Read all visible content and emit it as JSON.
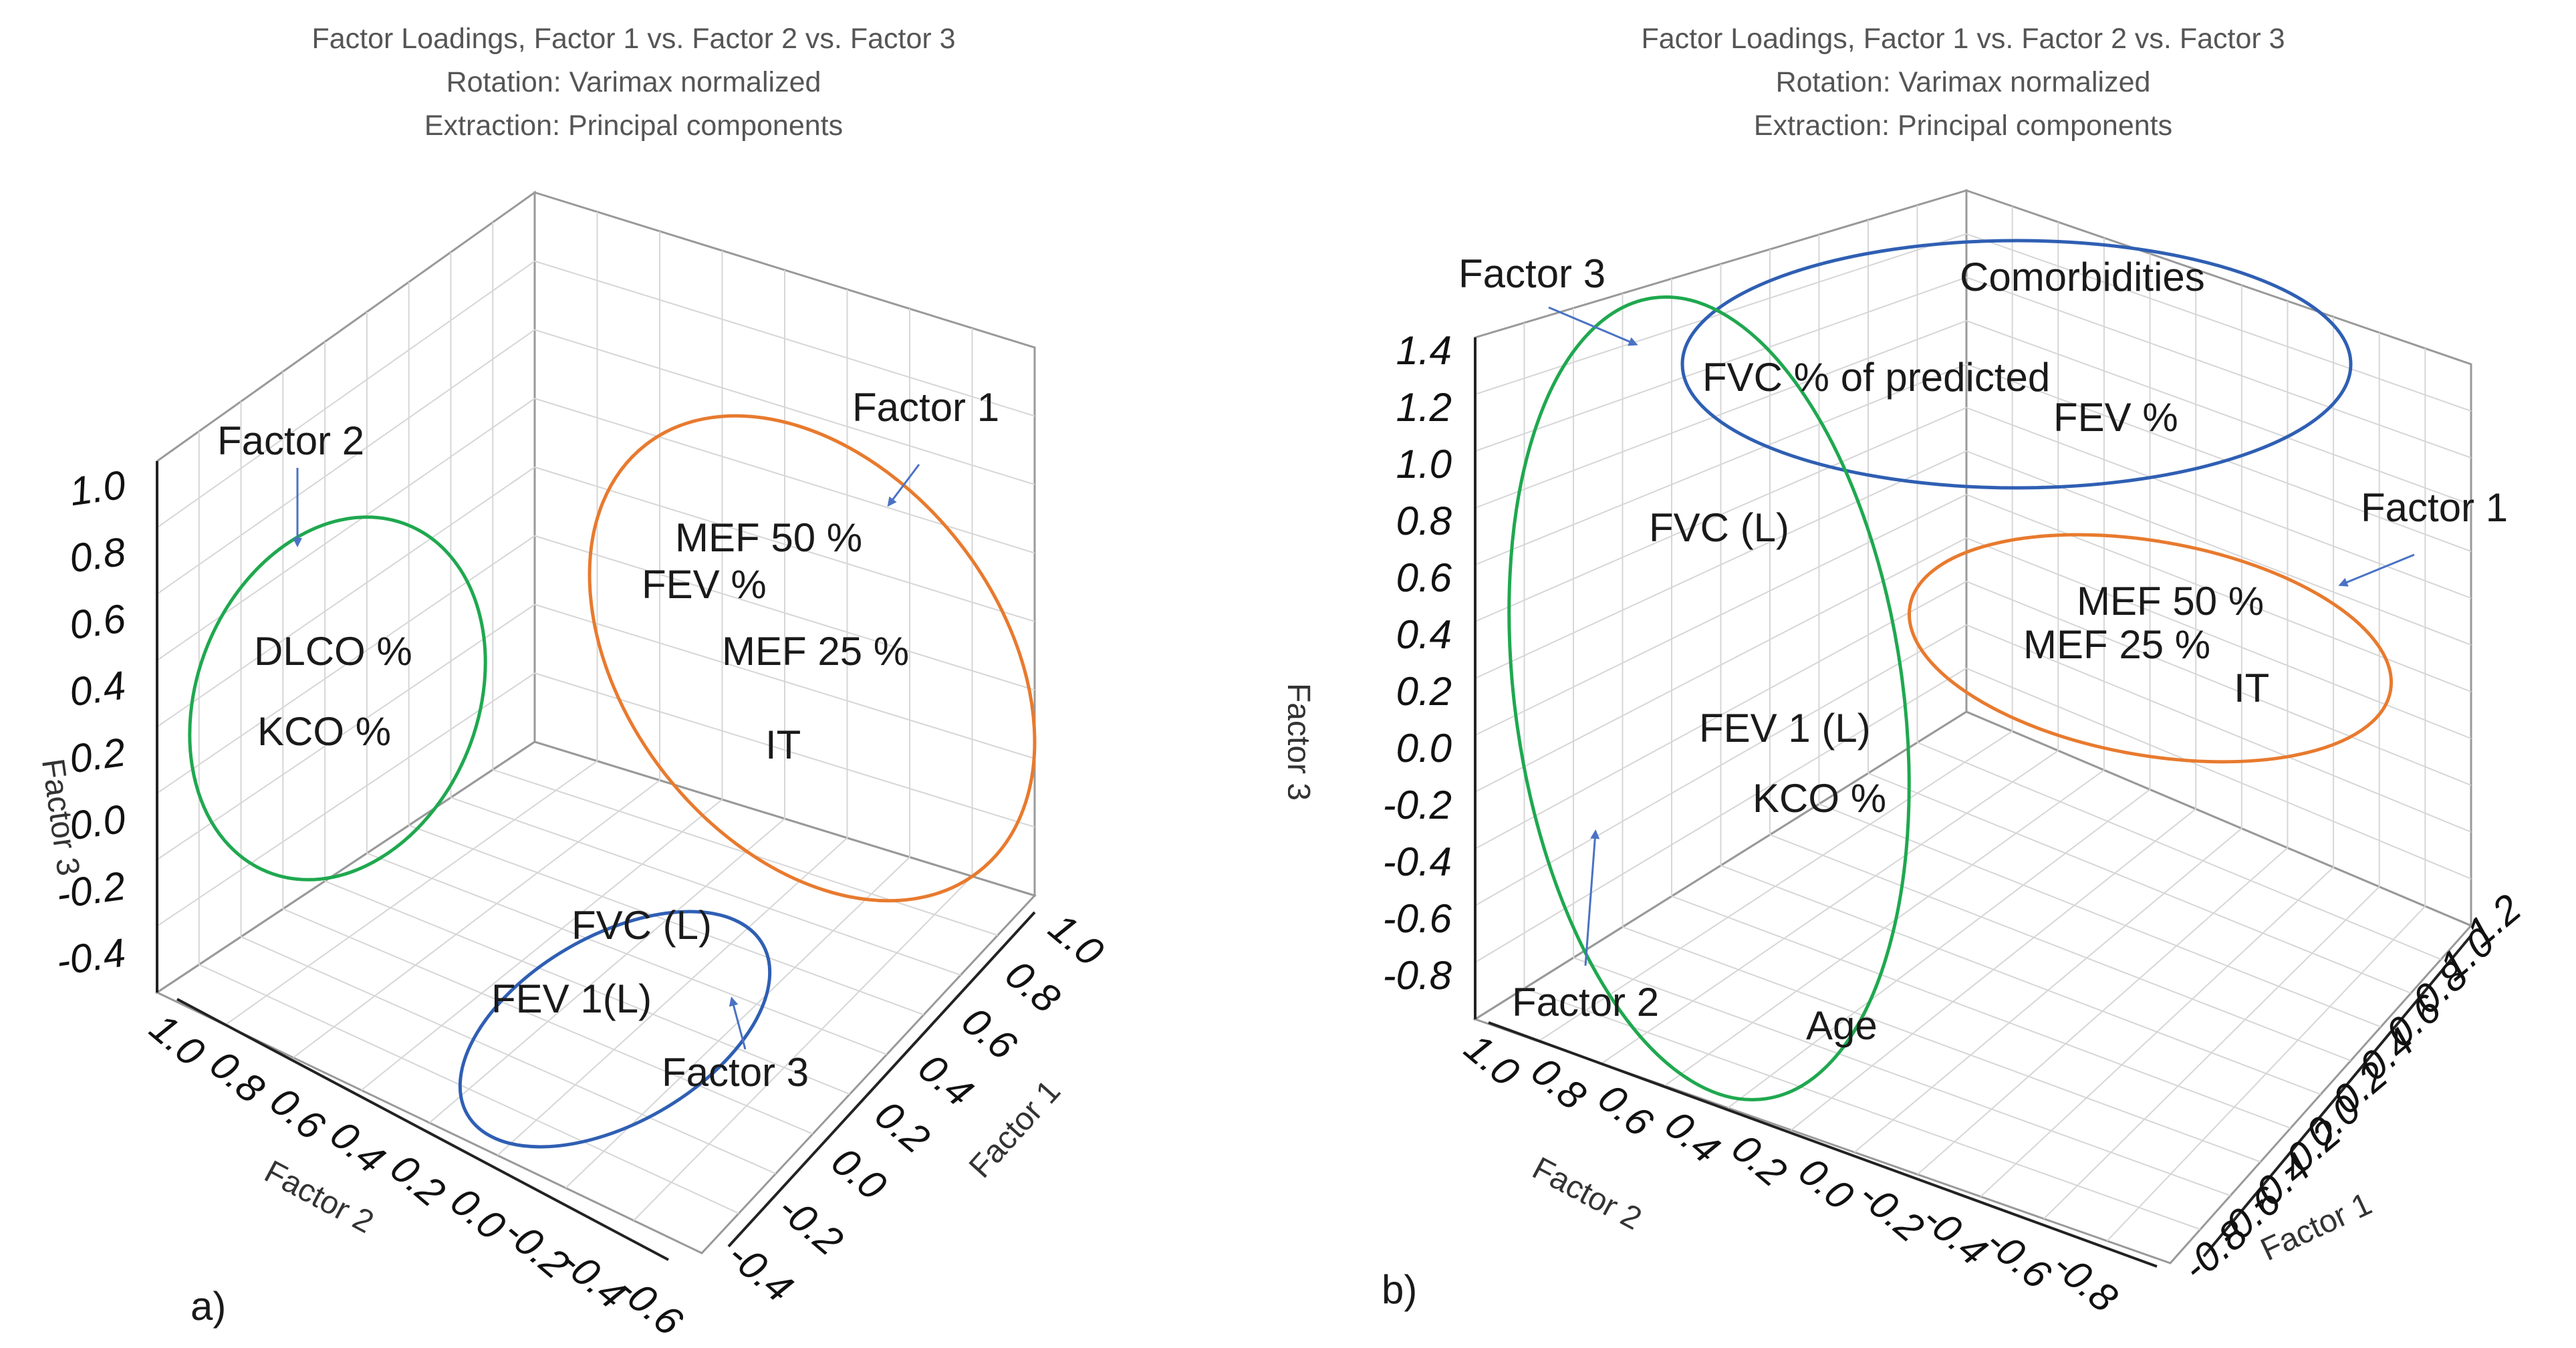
{
  "colors": {
    "factor1": "#e87a2e",
    "factor2": "#1fa84f",
    "factor3": "#2f5fb3",
    "arrow": "#4a72c4",
    "grid": "#d6d6d6"
  },
  "chart_data": [
    {
      "panel": "a)",
      "type": "scatter3d",
      "title": [
        "Factor Loadings, Factor 1 vs. Factor 2 vs. Factor 3",
        "Rotation: Varimax normalized",
        "Extraction: Principal components"
      ],
      "xlabel": "Factor 1",
      "ylabel": "Factor 2",
      "zlabel": "Factor 3",
      "x_ticks": [
        "1.0",
        "0.8",
        "0.6",
        "0.4",
        "0.2",
        "0.0",
        "-0.2",
        "-0.4"
      ],
      "y_ticks": [
        "1.0",
        "0.8",
        "0.6",
        "0.4",
        "0.2",
        "0.0",
        "-0.2",
        "-0.4",
        "-0.6"
      ],
      "z_ticks": [
        "1.0",
        "0.8",
        "0.6",
        "0.4",
        "0.2",
        "0.0",
        "-0.2",
        "-0.4"
      ],
      "variables": [
        "DLCO %",
        "KCO  %",
        "MEF 50 %",
        "FEV %",
        "MEF 25 %",
        "IT",
        "FVC (L)",
        "FEV 1(L)"
      ],
      "groups": [
        {
          "name": "Factor 2",
          "members": [
            "DLCO %",
            "KCO  %"
          ]
        },
        {
          "name": "Factor 1",
          "members": [
            "MEF 50 %",
            "FEV %",
            "MEF 25 %",
            "IT"
          ]
        },
        {
          "name": "Factor 3",
          "members": [
            "FVC (L)",
            "FEV 1(L)"
          ]
        }
      ]
    },
    {
      "panel": "b)",
      "type": "scatter3d",
      "title": [
        "Factor Loadings, Factor 1 vs. Factor 2 vs. Factor 3",
        "Rotation: Varimax normalized",
        "Extraction: Principal components"
      ],
      "xlabel": "Factor 1",
      "ylabel": "Factor 2",
      "zlabel": "Factor 3",
      "x_ticks": [
        "1.2",
        "1.0",
        "0.8",
        "0.6",
        "0.4",
        "0.2",
        "0.0",
        "-0.2",
        "-0.4",
        "-0.6",
        "-0.8"
      ],
      "y_ticks": [
        "1.0",
        "0.8",
        "0.6",
        "0.4",
        "0.2",
        "0.0",
        "-0.2",
        "-0.4",
        "-0.6",
        "-0.8"
      ],
      "z_ticks": [
        "1.4",
        "1.2",
        "1.0",
        "0.8",
        "0.6",
        "0.4",
        "0.2",
        "0.0",
        "-0.2",
        "-0.4",
        "-0.6",
        "-0.8"
      ],
      "variables": [
        "Comorbidities",
        "FVC %  of predicted",
        "FEV %",
        "FVC (L)",
        "FEV 1 (L)",
        "KCO  %",
        "Age",
        "MEF 50 %",
        "MEF 25 %",
        "IT"
      ],
      "groups": [
        {
          "name": "Factor 3",
          "members": [
            "Comorbidities",
            "FVC %  of predicted",
            "FEV %"
          ]
        },
        {
          "name": "Factor 2",
          "members": [
            "FVC (L)",
            "FEV 1 (L)",
            "KCO  %",
            "Age"
          ]
        },
        {
          "name": "Factor 1",
          "members": [
            "MEF 50 %",
            "MEF 25 %",
            "IT"
          ]
        }
      ]
    }
  ]
}
